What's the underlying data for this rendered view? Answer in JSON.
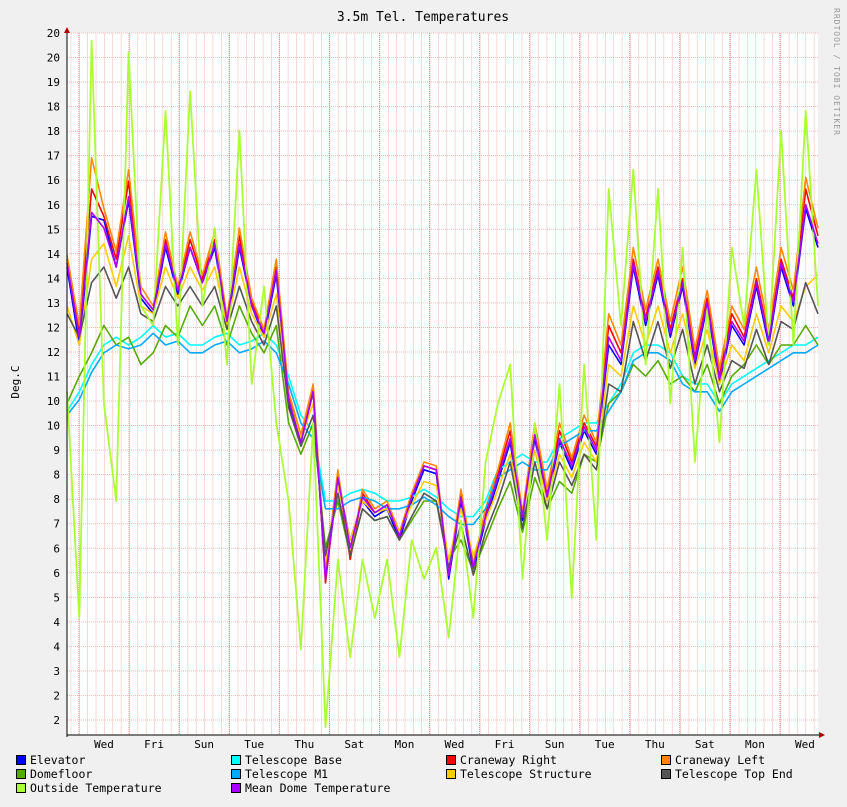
{
  "chart_data": {
    "type": "line",
    "title": "3.5m Tel. Temperatures",
    "ylabel": "Deg.C",
    "watermark": "RRDTOOL / TOBI OETIKER",
    "ylim": [
      2,
      20
    ],
    "y_ticks": [
      "2",
      "2",
      "3",
      "4",
      "4",
      "5",
      "6",
      "6",
      "7",
      "8",
      "8",
      "9",
      "10",
      "10",
      "11",
      "12",
      "12",
      "13",
      "14",
      "14",
      "15",
      "16",
      "16",
      "17",
      "18",
      "18",
      "19",
      "20",
      "20"
    ],
    "x_ticks": [
      "Wed",
      "Fri",
      "Sun",
      "Tue",
      "Thu",
      "Sat",
      "Mon",
      "Wed",
      "Fri",
      "Sun",
      "Tue",
      "Thu",
      "Sat",
      "Mon",
      "Wed"
    ],
    "grid": true,
    "legend_position": "bottom",
    "series": [
      {
        "name": "Elevator",
        "color": "#0000ff",
        "values": [
          14.0,
          12.0,
          15.3,
          15.2,
          14.0,
          15.7,
          13.2,
          12.8,
          14.5,
          13.3,
          14.5,
          13.6,
          14.5,
          12.5,
          14.5,
          13.0,
          12.2,
          13.8,
          10.5,
          9.5,
          10.8,
          6.0,
          8.5,
          7.0,
          8.0,
          7.6,
          7.8,
          7.0,
          8.0,
          8.8,
          8.7,
          6.0,
          8.0,
          6.2,
          7.5,
          8.5,
          9.5,
          7.5,
          9.6,
          8.0,
          9.5,
          8.8,
          9.8,
          9.2,
          12.0,
          11.5,
          14.0,
          12.5,
          13.8,
          12.2,
          13.5,
          11.5,
          13.0,
          11.0,
          12.5,
          12.0,
          13.5,
          12.0,
          14.0,
          13.0,
          15.5,
          14.5
        ]
      },
      {
        "name": "Telescope Base",
        "color": "#00ffff",
        "values": [
          10.3,
          10.8,
          11.5,
          12.0,
          12.2,
          12.0,
          12.2,
          12.5,
          12.2,
          12.3,
          12.0,
          12.0,
          12.2,
          12.3,
          12.0,
          12.1,
          12.3,
          12.0,
          11.2,
          10.2,
          9.8,
          8.0,
          8.0,
          8.2,
          8.3,
          8.2,
          8.0,
          8.0,
          8.1,
          8.3,
          8.1,
          7.8,
          7.6,
          7.6,
          8.0,
          8.8,
          9.0,
          9.2,
          9.0,
          9.0,
          9.6,
          9.8,
          10.0,
          10.0,
          10.5,
          11.0,
          11.8,
          12.0,
          12.0,
          11.8,
          11.2,
          11.0,
          11.0,
          10.5,
          11.0,
          11.2,
          11.4,
          11.6,
          11.8,
          12.0,
          12.0,
          12.2
        ]
      },
      {
        "name": "Craneway Right",
        "color": "#ff0000",
        "values": [
          14.2,
          12.3,
          16.0,
          15.3,
          14.2,
          16.2,
          13.3,
          12.9,
          14.7,
          13.4,
          14.7,
          13.7,
          14.7,
          12.6,
          14.8,
          13.1,
          12.3,
          14.0,
          10.7,
          9.6,
          10.9,
          5.9,
          8.7,
          6.5,
          8.2,
          7.7,
          7.9,
          7.1,
          8.1,
          8.9,
          8.8,
          6.1,
          8.2,
          6.3,
          7.7,
          8.7,
          9.8,
          7.6,
          9.9,
          8.2,
          9.8,
          9.0,
          10.0,
          9.4,
          12.5,
          11.8,
          14.2,
          12.7,
          14.0,
          12.4,
          13.7,
          11.7,
          13.2,
          11.2,
          12.8,
          12.2,
          13.7,
          12.2,
          14.2,
          13.2,
          16.0,
          14.8
        ]
      },
      {
        "name": "Craneway Left",
        "color": "#ff8800",
        "values": [
          14.3,
          12.5,
          16.8,
          15.5,
          14.4,
          16.5,
          13.5,
          13.0,
          14.9,
          13.5,
          14.9,
          13.8,
          14.9,
          12.7,
          15.0,
          13.2,
          12.4,
          14.2,
          10.8,
          9.7,
          11.0,
          6.2,
          8.8,
          6.6,
          8.3,
          7.8,
          8.0,
          7.2,
          8.2,
          9.0,
          8.9,
          6.2,
          8.3,
          6.4,
          7.8,
          8.8,
          10.0,
          7.7,
          10.0,
          8.3,
          10.0,
          9.1,
          10.2,
          9.5,
          12.8,
          12.0,
          14.5,
          12.9,
          14.2,
          12.6,
          14.0,
          11.9,
          13.4,
          11.4,
          13.0,
          12.4,
          14.0,
          12.4,
          14.5,
          13.4,
          16.3,
          15.0
        ]
      },
      {
        "name": "Domefloor",
        "color": "#55aa00",
        "values": [
          10.5,
          11.2,
          11.8,
          12.5,
          12.0,
          12.2,
          11.5,
          11.8,
          12.5,
          12.2,
          13.0,
          12.5,
          13.0,
          12.0,
          13.0,
          12.3,
          11.8,
          12.5,
          10.0,
          9.2,
          10.0,
          6.8,
          8.0,
          6.6,
          7.8,
          7.5,
          7.6,
          7.0,
          7.5,
          8.0,
          8.0,
          6.5,
          7.0,
          6.2,
          7.0,
          7.8,
          8.5,
          7.2,
          8.6,
          7.8,
          8.5,
          8.2,
          9.2,
          9.0,
          10.5,
          10.8,
          11.5,
          11.2,
          11.6,
          11.0,
          11.2,
          10.8,
          11.5,
          10.5,
          11.2,
          11.5,
          12.0,
          11.5,
          12.0,
          12.0,
          12.5,
          12.0
        ]
      },
      {
        "name": "Telescope M1",
        "color": "#00aaff",
        "values": [
          10.2,
          10.6,
          11.3,
          11.8,
          12.0,
          11.9,
          12.0,
          12.3,
          12.0,
          12.1,
          11.8,
          11.8,
          12.0,
          12.1,
          11.8,
          11.9,
          12.1,
          11.8,
          11.0,
          10.0,
          9.6,
          7.8,
          7.8,
          8.0,
          8.1,
          8.0,
          7.8,
          7.8,
          7.9,
          8.1,
          7.9,
          7.6,
          7.4,
          7.4,
          7.8,
          8.6,
          8.8,
          9.0,
          8.8,
          8.8,
          9.4,
          9.6,
          9.8,
          9.8,
          10.3,
          10.8,
          11.6,
          11.8,
          11.8,
          11.6,
          11.0,
          10.8,
          10.8,
          10.3,
          10.8,
          11.0,
          11.2,
          11.4,
          11.6,
          11.8,
          11.8,
          12.0
        ]
      },
      {
        "name": "Telescope Structure",
        "color": "#ffcc00",
        "values": [
          13.0,
          12.0,
          14.2,
          14.6,
          13.5,
          14.8,
          13.0,
          12.8,
          14.0,
          13.2,
          14.0,
          13.4,
          14.0,
          12.5,
          14.0,
          12.8,
          12.2,
          13.3,
          10.6,
          9.6,
          10.5,
          6.5,
          8.4,
          7.0,
          8.0,
          7.7,
          7.8,
          7.2,
          7.9,
          8.5,
          8.4,
          6.5,
          7.8,
          6.6,
          7.5,
          8.3,
          9.2,
          7.6,
          9.3,
          8.0,
          9.2,
          8.6,
          9.5,
          9.0,
          11.5,
          11.2,
          13.0,
          12.0,
          13.0,
          11.8,
          12.8,
          11.4,
          12.4,
          11.0,
          12.0,
          11.6,
          12.8,
          11.8,
          13.0,
          12.6,
          13.5,
          13.8
        ]
      },
      {
        "name": "Telescope Top End",
        "color": "#555555",
        "values": [
          12.8,
          12.2,
          13.6,
          14.0,
          13.2,
          14.0,
          12.8,
          12.6,
          13.5,
          13.0,
          13.5,
          13.0,
          13.5,
          12.4,
          13.5,
          12.6,
          12.0,
          13.0,
          10.4,
          9.4,
          10.2,
          6.6,
          8.2,
          6.6,
          7.8,
          7.5,
          7.6,
          7.0,
          7.6,
          8.2,
          8.0,
          6.3,
          7.4,
          6.1,
          7.2,
          8.0,
          9.0,
          7.3,
          9.0,
          7.8,
          9.0,
          8.4,
          9.2,
          8.8,
          11.0,
          10.8,
          12.6,
          11.6,
          12.6,
          11.4,
          12.4,
          11.0,
          12.0,
          10.8,
          11.6,
          11.4,
          12.4,
          11.5,
          12.6,
          12.4,
          13.6,
          12.8
        ]
      },
      {
        "name": "Outside Temperature",
        "color": "#aaff33",
        "values": [
          10.8,
          5.0,
          19.8,
          10.5,
          8.0,
          19.5,
          13.0,
          12.5,
          18.0,
          12.0,
          18.5,
          13.0,
          15.0,
          11.5,
          17.5,
          11.0,
          13.5,
          10.0,
          8.0,
          4.2,
          10.0,
          2.2,
          6.5,
          4.0,
          6.5,
          5.0,
          6.5,
          4.0,
          7.0,
          6.0,
          6.8,
          4.5,
          7.5,
          5.0,
          9.0,
          10.5,
          11.5,
          6.0,
          10.0,
          7.0,
          11.0,
          5.5,
          11.5,
          7.0,
          16.0,
          12.5,
          16.5,
          11.5,
          16.0,
          10.5,
          14.5,
          9.0,
          13.0,
          9.5,
          14.5,
          12.5,
          16.5,
          12.0,
          17.5,
          12.0,
          18.0,
          13.0
        ]
      },
      {
        "name": "Mean Dome Temperature",
        "color": "#aa00ff",
        "values": [
          14.1,
          12.2,
          15.4,
          15.0,
          14.0,
          15.8,
          13.3,
          12.9,
          14.6,
          13.4,
          14.5,
          13.6,
          14.6,
          12.6,
          14.6,
          13.0,
          12.3,
          13.9,
          10.6,
          9.5,
          10.8,
          6.0,
          8.6,
          6.8,
          8.1,
          7.7,
          7.9,
          7.1,
          8.1,
          8.9,
          8.8,
          6.1,
          8.1,
          6.3,
          7.6,
          8.6,
          9.6,
          7.6,
          9.7,
          8.1,
          9.6,
          8.9,
          9.9,
          9.3,
          12.2,
          11.6,
          14.1,
          12.6,
          13.9,
          12.3,
          13.6,
          11.6,
          13.1,
          11.1,
          12.6,
          12.1,
          13.6,
          12.1,
          14.1,
          13.1,
          15.6,
          14.6
        ]
      }
    ]
  }
}
